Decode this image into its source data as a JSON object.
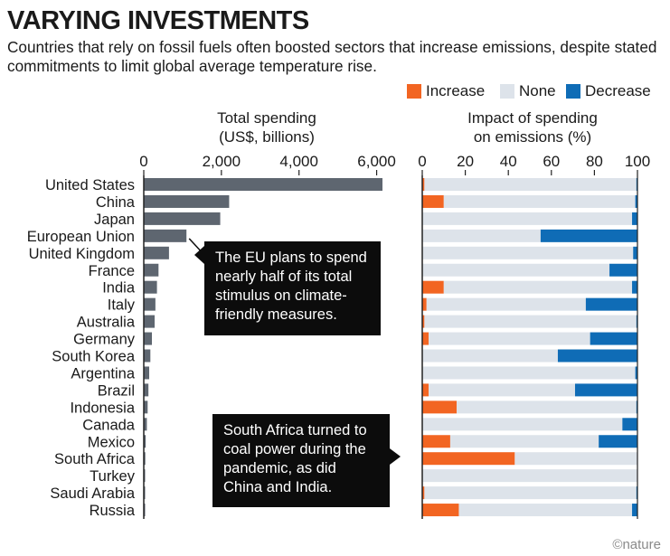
{
  "header": {
    "title": "VARYING INVESTMENTS",
    "subtitle": "Countries that rely on fossil fuels often boosted sectors that increase emissions, despite stated commitments to limit global average temperature rise."
  },
  "legend": [
    {
      "label": "Increase",
      "color": "#f26522"
    },
    {
      "label": "None",
      "color": "#dde3ea"
    },
    {
      "label": "Decrease",
      "color": "#0f6cb6"
    }
  ],
  "left_panel": {
    "title_line1": "Total spending",
    "title_line2": "(US$, billions)"
  },
  "right_panel": {
    "title_line1": "Impact of spending",
    "title_line2": "on emissions (%)"
  },
  "callouts": {
    "eu": "The EU plans to spend nearly half of its total stimulus on climate-friendly measures.",
    "south_africa": "South Africa turned to coal power during the pandemic, as did China and India."
  },
  "credit": "©nature",
  "chart_data": [
    {
      "type": "bar",
      "orientation": "horizontal",
      "title": "Total spending (US$, billions)",
      "xlim": [
        0,
        6500
      ],
      "ticks": [
        0,
        2000,
        4000,
        6000
      ],
      "tick_labels": [
        "0",
        "2,000",
        "4,000",
        "6,000"
      ],
      "color": "#5e6670",
      "categories": [
        "United States",
        "China",
        "Japan",
        "European Union",
        "United Kingdom",
        "France",
        "India",
        "Italy",
        "Australia",
        "Germany",
        "South Korea",
        "Argentina",
        "Brazil",
        "Indonesia",
        "Canada",
        "Mexico",
        "South Africa",
        "Turkey",
        "Saudi Arabia",
        "Russia"
      ],
      "values": [
        6150,
        2200,
        1970,
        1100,
        650,
        380,
        340,
        300,
        280,
        210,
        170,
        140,
        120,
        100,
        80,
        50,
        40,
        30,
        25,
        20
      ]
    },
    {
      "type": "bar",
      "orientation": "horizontal",
      "stacked": true,
      "title": "Impact of spending on emissions (%)",
      "xlim": [
        0,
        100
      ],
      "ticks": [
        0,
        20,
        40,
        60,
        80,
        100
      ],
      "tick_labels": [
        "0",
        "20",
        "40",
        "60",
        "80",
        "100"
      ],
      "categories": [
        "United States",
        "China",
        "Japan",
        "European Union",
        "United Kingdom",
        "France",
        "India",
        "Italy",
        "Australia",
        "Germany",
        "South Korea",
        "Argentina",
        "Brazil",
        "Indonesia",
        "Canada",
        "Mexico",
        "South Africa",
        "Turkey",
        "Saudi Arabia",
        "Russia"
      ],
      "series": [
        {
          "name": "Increase",
          "color": "#f26522",
          "values": [
            1,
            10,
            0,
            0,
            0,
            0,
            10,
            2,
            1,
            3,
            0,
            0,
            3,
            16,
            0,
            13,
            43,
            0,
            1,
            17
          ]
        },
        {
          "name": "None",
          "color": "#dde3ea",
          "values": [
            98.5,
            89,
            97.5,
            55,
            98,
            87,
            87.5,
            74,
            98.5,
            75,
            63,
            99,
            68,
            83.5,
            93,
            69,
            57,
            100,
            98.5,
            80.5
          ]
        },
        {
          "name": "Decrease",
          "color": "#0f6cb6",
          "values": [
            0.5,
            1,
            2.5,
            45,
            2,
            13,
            2.5,
            24,
            0.5,
            22,
            37,
            1,
            29,
            0.5,
            7,
            18,
            0,
            0,
            0.5,
            2.5
          ]
        }
      ]
    }
  ]
}
